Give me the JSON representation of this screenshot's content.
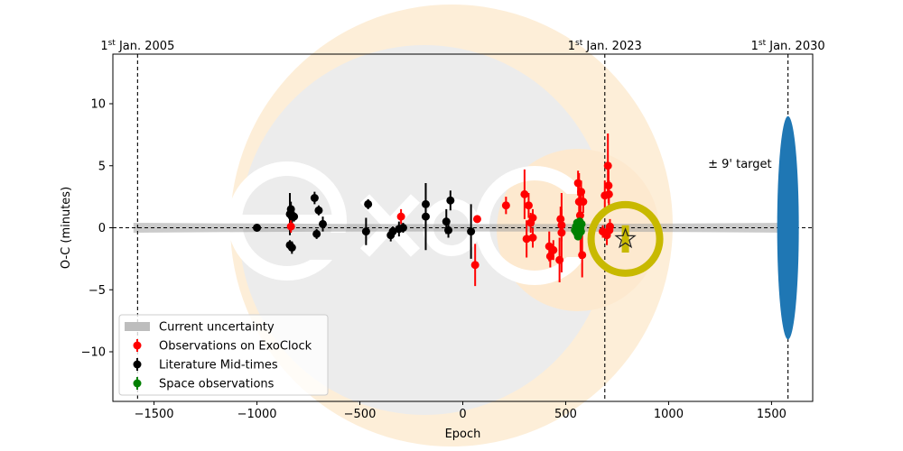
{
  "chart_data": {
    "type": "scatter",
    "xlabel": "Epoch",
    "ylabel": "O-C (minutes)",
    "xlim": [
      -1700,
      1700
    ],
    "ylim": [
      -14,
      14
    ],
    "x_ticks": [
      -1500,
      -1000,
      -500,
      0,
      500,
      1000,
      1500
    ],
    "y_ticks": [
      -10,
      -5,
      0,
      5,
      10
    ],
    "grid": false,
    "legend_position": "lower-left",
    "date_markers": [
      {
        "epoch": -1580,
        "label": "Jan. 2005",
        "prefix": "1",
        "sup": "st"
      },
      {
        "epoch": 690,
        "label": "Jan. 2023",
        "prefix": "1",
        "sup": "st"
      },
      {
        "epoch": 1580,
        "label": "Jan. 2030",
        "prefix": "1",
        "sup": "st"
      }
    ],
    "target_annotation": {
      "text": "± 9' target",
      "epoch": 1580,
      "half_height": 9,
      "color": "#1f77b4"
    },
    "uncertainty_band": {
      "name": "Current uncertainty",
      "x_range": [
        -1600,
        1600
      ],
      "half_width_at_start": 0.4,
      "half_width_at_mid": 0.2,
      "color": "#a0a0a0"
    },
    "prediction": {
      "epoch": 790,
      "oc": -0.9,
      "err": 1.1,
      "marker": "star",
      "ring_color": "#c8b900"
    },
    "series": [
      {
        "name": "Observations on ExoClock",
        "color": "#ff0000",
        "points": [
          {
            "x": -835,
            "y": 0.1,
            "err": 0.5
          },
          {
            "x": -300,
            "y": 0.9,
            "err": 0.6
          },
          {
            "x": 70,
            "y": 0.7,
            "err": 0.3
          },
          {
            "x": 60,
            "y": -3.0,
            "err": 1.7
          },
          {
            "x": 210,
            "y": 1.8,
            "err": 0.7
          },
          {
            "x": 300,
            "y": 2.7,
            "err": 2.0
          },
          {
            "x": 310,
            "y": -0.9,
            "err": 1.5
          },
          {
            "x": 320,
            "y": 1.8,
            "err": 1.0
          },
          {
            "x": 330,
            "y": 0.4,
            "err": 0.8
          },
          {
            "x": 340,
            "y": 0.8,
            "err": 0.7
          },
          {
            "x": 340,
            "y": -0.8,
            "err": 0.8
          },
          {
            "x": 420,
            "y": -1.5,
            "err": 1.2
          },
          {
            "x": 425,
            "y": -2.3,
            "err": 0.9
          },
          {
            "x": 440,
            "y": -1.8,
            "err": 0.8
          },
          {
            "x": 470,
            "y": -2.6,
            "err": 1.8
          },
          {
            "x": 475,
            "y": 0.7,
            "err": 1.0
          },
          {
            "x": 480,
            "y": -0.4,
            "err": 3.2
          },
          {
            "x": 480,
            "y": 0.2,
            "err": 1.3
          },
          {
            "x": 560,
            "y": 3.6,
            "err": 1.0
          },
          {
            "x": 565,
            "y": 2.1,
            "err": 2.3
          },
          {
            "x": 570,
            "y": 1.0,
            "err": 1.8
          },
          {
            "x": 572,
            "y": -0.3,
            "err": 2.2
          },
          {
            "x": 575,
            "y": 2.9,
            "err": 0.9
          },
          {
            "x": 580,
            "y": -2.2,
            "err": 1.8
          },
          {
            "x": 585,
            "y": 2.1,
            "err": 0.9
          },
          {
            "x": 680,
            "y": -0.3,
            "err": 0.5
          },
          {
            "x": 690,
            "y": 2.6,
            "err": 1.2
          },
          {
            "x": 700,
            "y": -0.6,
            "err": 0.8
          },
          {
            "x": 705,
            "y": 5.0,
            "err": 2.6
          },
          {
            "x": 708,
            "y": 3.4,
            "err": 1.4
          },
          {
            "x": 710,
            "y": 2.7,
            "err": 1.1
          },
          {
            "x": 712,
            "y": -0.2,
            "err": 0.5
          },
          {
            "x": 715,
            "y": 0.1,
            "err": 0.6
          }
        ]
      },
      {
        "name": "Literature Mid-times",
        "color": "#000000",
        "points": [
          {
            "x": -1000,
            "y": 0.0,
            "err": 0.15
          },
          {
            "x": -840,
            "y": 1.1,
            "err": 1.7
          },
          {
            "x": -835,
            "y": 1.5,
            "err": 0.6
          },
          {
            "x": -830,
            "y": 0.9,
            "err": 0.6
          },
          {
            "x": -820,
            "y": 0.9,
            "err": 0.4
          },
          {
            "x": -840,
            "y": -1.4,
            "err": 0.4
          },
          {
            "x": -830,
            "y": -1.6,
            "err": 0.5
          },
          {
            "x": -720,
            "y": 2.4,
            "err": 0.5
          },
          {
            "x": -710,
            "y": -0.5,
            "err": 0.4
          },
          {
            "x": -700,
            "y": 1.4,
            "err": 0.4
          },
          {
            "x": -680,
            "y": 0.3,
            "err": 0.6
          },
          {
            "x": -460,
            "y": 1.9,
            "err": 0.4
          },
          {
            "x": -470,
            "y": -0.3,
            "err": 1.1
          },
          {
            "x": -350,
            "y": -0.6,
            "err": 0.5
          },
          {
            "x": -340,
            "y": -0.3,
            "err": 0.4
          },
          {
            "x": -310,
            "y": -0.1,
            "err": 0.6
          },
          {
            "x": -290,
            "y": 0.0,
            "err": 0.4
          },
          {
            "x": -180,
            "y": 1.9,
            "err": 1.7
          },
          {
            "x": -180,
            "y": 0.9,
            "err": 2.7
          },
          {
            "x": -80,
            "y": 0.5,
            "err": 1.0
          },
          {
            "x": -70,
            "y": -0.2,
            "err": 0.6
          },
          {
            "x": -60,
            "y": 2.2,
            "err": 0.8
          },
          {
            "x": 40,
            "y": -0.3,
            "err": 2.2
          }
        ]
      },
      {
        "name": "Space observations",
        "color": "#008000",
        "points": [
          {
            "x": 545,
            "y": -0.2,
            "err": 0.1
          },
          {
            "x": 550,
            "y": 0.1,
            "err": 0.1
          },
          {
            "x": 553,
            "y": -0.4,
            "err": 0.1
          },
          {
            "x": 556,
            "y": 0.4,
            "err": 0.1
          },
          {
            "x": 559,
            "y": -0.1,
            "err": 0.1
          },
          {
            "x": 562,
            "y": 0.2,
            "err": 0.1
          },
          {
            "x": 565,
            "y": -0.5,
            "err": 0.1
          },
          {
            "x": 568,
            "y": 0.5,
            "err": 0.1
          },
          {
            "x": 571,
            "y": 0.0,
            "err": 0.1
          },
          {
            "x": 574,
            "y": -0.3,
            "err": 0.1
          },
          {
            "x": 577,
            "y": 0.3,
            "err": 0.1
          },
          {
            "x": 560,
            "y": -0.7,
            "err": 0.1
          }
        ]
      }
    ],
    "legend": [
      {
        "label": "Current uncertainty",
        "kind": "band",
        "color": "#bdbdbd"
      },
      {
        "label": "Observations on ExoClock",
        "kind": "point",
        "color": "#ff0000"
      },
      {
        "label": "Literature Mid-times",
        "kind": "point",
        "color": "#000000"
      },
      {
        "label": "Space observations",
        "kind": "point",
        "color": "#008000"
      }
    ]
  }
}
